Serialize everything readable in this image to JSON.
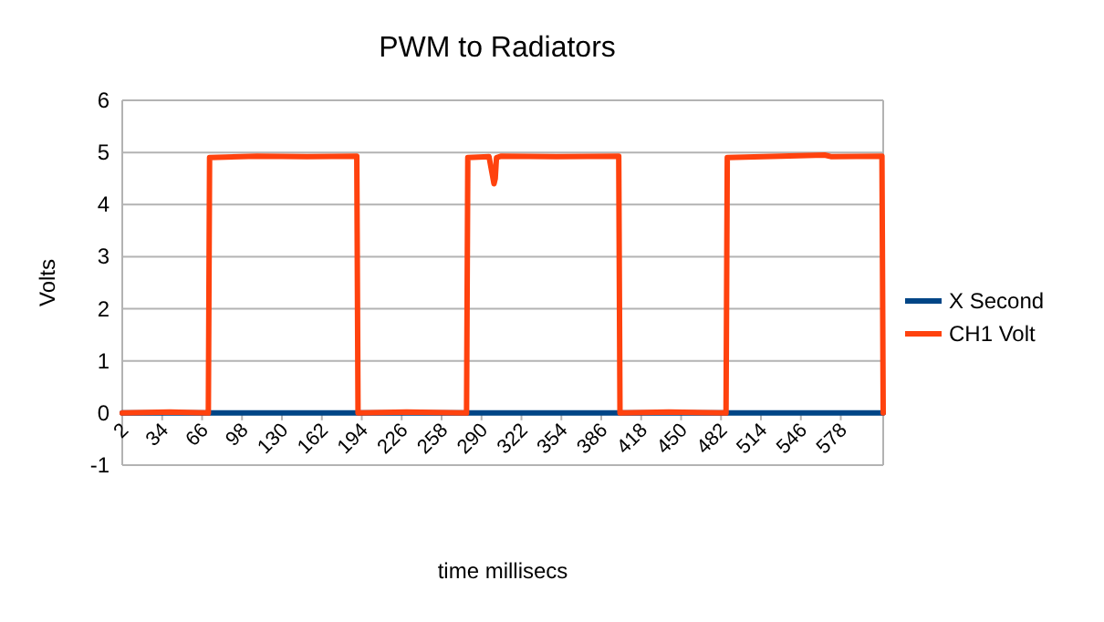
{
  "chart_data": {
    "type": "line",
    "title": "PWM to Radiators",
    "xlabel": "time millisecs",
    "ylabel": "Volts",
    "xlim": [
      2,
      612
    ],
    "xticks": [
      2,
      34,
      66,
      98,
      130,
      162,
      194,
      226,
      258,
      290,
      322,
      354,
      386,
      418,
      450,
      482,
      514,
      546,
      578
    ],
    "ylim": [
      -1,
      6
    ],
    "yticks": [
      -1,
      0,
      1,
      2,
      3,
      4,
      5,
      6
    ],
    "grid": "y",
    "legend": "right",
    "line_style": "solid",
    "series": [
      {
        "name": "X Second",
        "color": "#004586",
        "x": [
          2,
          612
        ],
        "values": [
          0,
          0
        ]
      },
      {
        "name": "CH1 Volt",
        "color": "#ff420e",
        "x": [
          2,
          40,
          71,
          72,
          110,
          150,
          190,
          191,
          230,
          278,
          279,
          296,
          300,
          301,
          302,
          306,
          350,
          400,
          401,
          440,
          486,
          487,
          530,
          565,
          570,
          611,
          612
        ],
        "values": [
          0,
          0.02,
          0,
          4.9,
          4.93,
          4.92,
          4.93,
          0,
          0.02,
          0,
          4.9,
          4.92,
          4.4,
          4.5,
          4.9,
          4.93,
          4.92,
          4.93,
          0,
          0.02,
          0,
          4.9,
          4.93,
          4.95,
          4.92,
          4.93,
          0
        ]
      }
    ]
  }
}
